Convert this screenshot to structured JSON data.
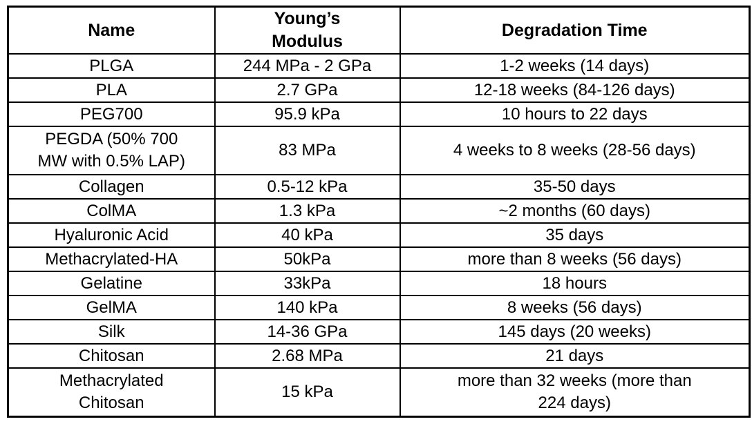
{
  "table": {
    "headers": {
      "name": "Name",
      "modulus": "Young’s\nModulus",
      "degradation": "Degradation Time"
    },
    "rows": [
      {
        "name": "PLGA",
        "modulus": "244 MPa - 2 GPa",
        "degradation": "1-2 weeks (14 days)"
      },
      {
        "name": "PLA",
        "modulus": "2.7 GPa",
        "degradation": "12-18 weeks (84-126 days)"
      },
      {
        "name": "PEG700",
        "modulus": "95.9 kPa",
        "degradation": "10 hours to 22 days"
      },
      {
        "name": "PEGDA (50% 700\nMW with 0.5% LAP)",
        "modulus": "83 MPa",
        "degradation": "4 weeks to 8 weeks (28-56 days)"
      },
      {
        "name": "Collagen",
        "modulus": "0.5-12 kPa",
        "degradation": "35-50 days"
      },
      {
        "name": "ColMA",
        "modulus": "1.3 kPa",
        "degradation": "~2 months (60 days)"
      },
      {
        "name": "Hyaluronic Acid",
        "modulus": "40 kPa",
        "degradation": "35 days"
      },
      {
        "name": "Methacrylated-HA",
        "modulus": "50kPa",
        "degradation": "more than 8 weeks (56 days)"
      },
      {
        "name": "Gelatine",
        "modulus": "33kPa",
        "degradation": "18 hours"
      },
      {
        "name": "GelMA",
        "modulus": "140 kPa",
        "degradation": "8 weeks (56 days)"
      },
      {
        "name": "Silk",
        "modulus": "14-36 GPa",
        "degradation": "145 days (20 weeks)"
      },
      {
        "name": "Chitosan",
        "modulus": "2.68 MPa",
        "degradation": "21 days"
      },
      {
        "name": "Methacrylated\nChitosan",
        "modulus": "15 kPa",
        "degradation": "more than 32 weeks (more than\n224 days)"
      }
    ]
  }
}
